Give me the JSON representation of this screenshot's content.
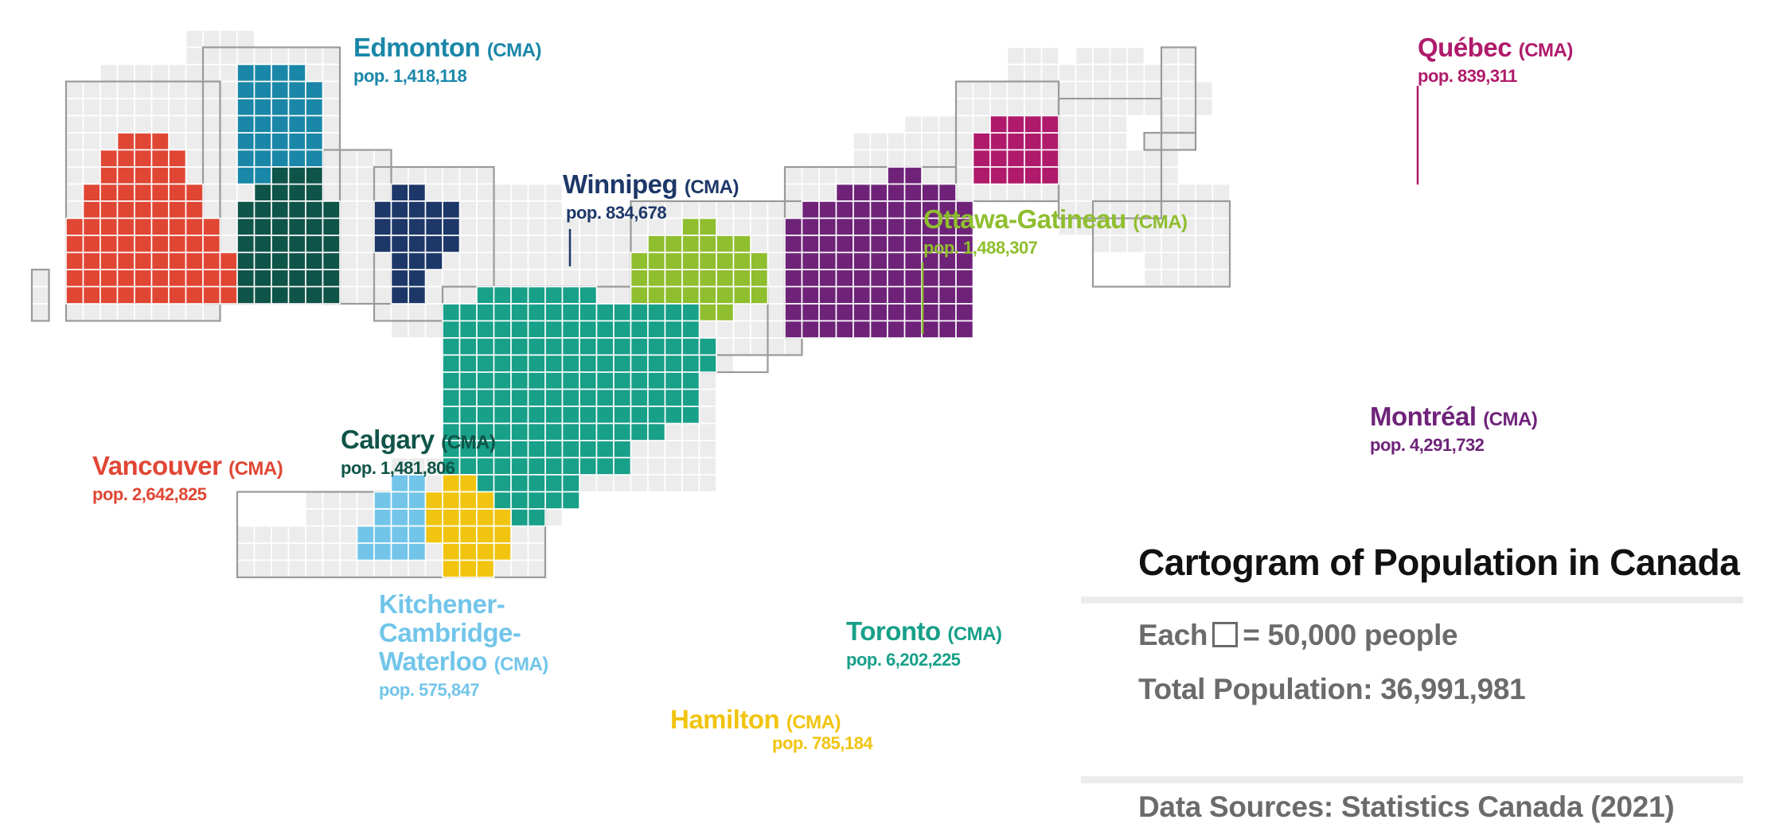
{
  "title": "Cartogram of Population in Canada",
  "legend": {
    "each_prefix": "Each",
    "each_suffix": "= 50,000 people",
    "total": "Total Population: 36,991,981"
  },
  "source": "Data Sources: Statistics Canada (2021)",
  "colors": {
    "background_cell": "#ececec",
    "cell_grid": "#ffffff",
    "outline": "#9a9a9a"
  },
  "cmas": [
    {
      "id": "vancouver",
      "name": "Vancouver",
      "suffix": "(CMA)",
      "pop_label": "pop. 2,642,825",
      "population": 2642825,
      "color": "#e04634"
    },
    {
      "id": "edmonton",
      "name": "Edmonton",
      "suffix": "(CMA)",
      "pop_label": "pop. 1,418,118",
      "population": 1418118,
      "color": "#1a87a8"
    },
    {
      "id": "calgary",
      "name": "Calgary",
      "suffix": "(CMA)",
      "pop_label": "pop. 1,481,806",
      "population": 1481806,
      "color": "#0f5448"
    },
    {
      "id": "winnipeg",
      "name": "Winnipeg",
      "suffix": "(CMA)",
      "pop_label": "pop. 834,678",
      "population": 834678,
      "color": "#1d3768"
    },
    {
      "id": "ottawa",
      "name": "Ottawa-Gatineau",
      "suffix": "(CMA)",
      "pop_label": "pop. 1,488,307",
      "population": 1488307,
      "color": "#8fbe2e"
    },
    {
      "id": "montreal",
      "name": "Montréal",
      "suffix": "(CMA)",
      "pop_label": "pop. 4,291,732",
      "population": 4291732,
      "color": "#6e2379"
    },
    {
      "id": "quebec",
      "name": "Québec",
      "suffix": "(CMA)",
      "pop_label": "pop. 839,311",
      "population": 839311,
      "color": "#b01a6b"
    },
    {
      "id": "toronto",
      "name": "Toronto",
      "suffix": "(CMA)",
      "pop_label": "pop. 6,202,225",
      "population": 6202225,
      "color": "#18a089"
    },
    {
      "id": "kitchener",
      "name_lines": [
        "Kitchener-",
        "Cambridge-",
        "Waterloo"
      ],
      "suffix": "(CMA)",
      "pop_label": "pop. 575,847",
      "population": 575847,
      "color": "#72c5e9"
    },
    {
      "id": "hamilton",
      "name": "Hamilton",
      "suffix": "(CMA)",
      "pop_label": "pop. 785,184",
      "population": 785184,
      "color": "#f1c40f"
    }
  ]
}
